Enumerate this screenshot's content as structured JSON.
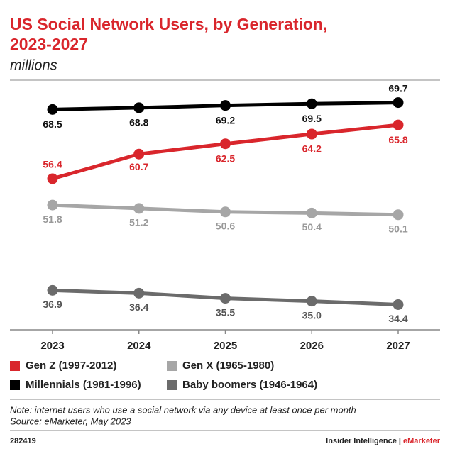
{
  "chart_data": {
    "type": "line",
    "title": "US Social Network Users, by Generation,",
    "title_line2": "2023-2027",
    "subtitle": "millions",
    "categories": [
      "2023",
      "2024",
      "2025",
      "2026",
      "2027"
    ],
    "ylim": [
      30,
      73
    ],
    "series": [
      {
        "name": "Gen Z (1997-2012)",
        "color": "#d9262c",
        "values": [
          56.4,
          60.7,
          62.5,
          64.2,
          65.8
        ],
        "value_labels": [
          "56.4",
          "60.7",
          "62.5",
          "64.2",
          "65.8"
        ]
      },
      {
        "name": "Millennials (1981-1996)",
        "color": "#000000",
        "values": [
          68.5,
          68.8,
          69.2,
          69.5,
          69.7
        ],
        "value_labels": [
          "68.5",
          "68.8",
          "69.2",
          "69.5",
          "69.7"
        ]
      },
      {
        "name": "Gen X (1965-1980)",
        "color": "#a6a6a6",
        "values": [
          51.8,
          51.2,
          50.6,
          50.4,
          50.1
        ],
        "value_labels": [
          "51.8",
          "51.2",
          "50.6",
          "50.4",
          "50.1"
        ]
      },
      {
        "name": "Baby boomers (1946-1964)",
        "color": "#6b6b6b",
        "values": [
          36.9,
          36.4,
          35.5,
          35.0,
          34.4
        ],
        "value_labels": [
          "36.9",
          "36.4",
          "35.5",
          "35.0",
          "34.4"
        ]
      }
    ],
    "note": "Note: internet users who use a social network via any device at least once per month",
    "source": "Source: eMarketer, May 2023",
    "footer_id": "282419",
    "brand": "Insider Intelligence",
    "brand_separator": "|",
    "brand2": "eMarketer"
  }
}
